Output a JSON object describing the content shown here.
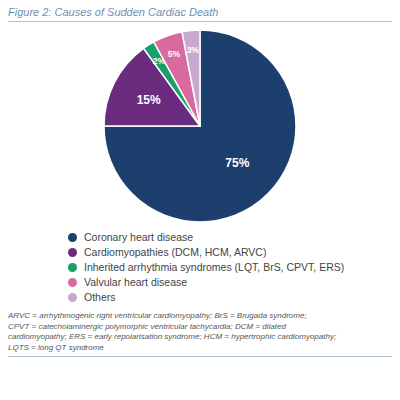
{
  "chart_data": {
    "type": "pie",
    "title": "Figure 2: Causes of Sudden Cardiac Death",
    "categories": [
      "Coronary heart disease",
      "Cardiomyopathies (DCM, HCM, ARVC)",
      "Inherited arrhythmia syndromes (LQT, BrS, CPVT, ERS)",
      "Valvular heart disease",
      "Others"
    ],
    "values": [
      75,
      15,
      2,
      5,
      3
    ],
    "value_labels": [
      "75%",
      "15%",
      "2%",
      "5%",
      "3%"
    ],
    "colors": [
      "#1c3f6e",
      "#6b2c7f",
      "#1a9e6b",
      "#d96aa0",
      "#c8a8d0"
    ],
    "data_labels": true,
    "legend": "bottom",
    "annotations": [
      "ARVC = arrhythmogenic right ventricular cardiomyopathy; BrS = Brugada syndrome;\nCPVT = catecholaminergic polymorphic ventricular tachycardia; DCM = dilated\ncardiomyopathy; ERS = early repolarisation syndrome; HCM = hypertrophic cardiomyopathy;\nLQTS = long QT syndrome"
    ]
  }
}
